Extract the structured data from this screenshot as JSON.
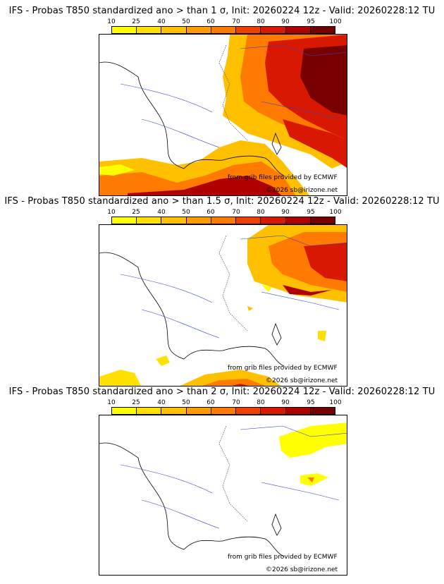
{
  "colorbar": {
    "ticks": [
      "10",
      "25",
      "40",
      "50",
      "60",
      "70",
      "80",
      "90",
      "95",
      "100"
    ],
    "colors": [
      "#ffff00",
      "#ffe000",
      "#ffc000",
      "#ff9a00",
      "#ff7a00",
      "#f04000",
      "#d81800",
      "#b00000",
      "#780000"
    ]
  },
  "panels": [
    {
      "title": "IFS - Probas T850  standardized ano > than 1 σ, Init: 20260224 12z - Valid: 20260228:12 TU"
    },
    {
      "title": "IFS - Probas T850  standardized ano > than 1.5 σ, Init: 20260224 12z - Valid: 20260228:12 TU"
    },
    {
      "title": "IFS - Probas T850  standardized ano > than 2 σ, Init: 20260224 12z - Valid: 20260228:12 TU"
    }
  ],
  "credits": {
    "source": "from grib files provided by ECMWF",
    "copyright": "©2026 sb@irizone.net"
  }
}
